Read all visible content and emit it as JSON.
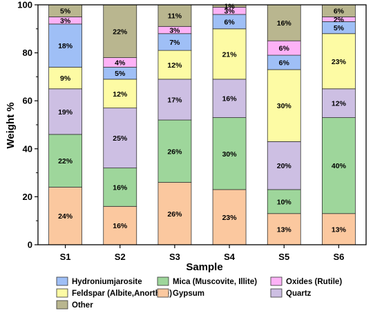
{
  "chart_data": {
    "type": "bar",
    "stacked": true,
    "title": "",
    "xlabel": "Sample",
    "ylabel": "Weight %",
    "ylim": [
      0,
      100
    ],
    "yticks": [
      0,
      20,
      40,
      60,
      80,
      100
    ],
    "grid": false,
    "legend_position": "bottom",
    "categories": [
      "S1",
      "S2",
      "S3",
      "S4",
      "S5",
      "S6"
    ],
    "series": [
      {
        "name": "Gypsum",
        "color": "#fbc89f",
        "values": [
          24,
          16,
          26,
          23,
          13,
          13
        ],
        "labels": [
          "24%",
          "16%",
          "26%",
          "23%",
          "13%",
          "13%"
        ]
      },
      {
        "name": "Mica (Muscovite, Illite)",
        "color": "#9ed69b",
        "values": [
          22,
          16,
          26,
          30,
          10,
          40
        ],
        "labels": [
          "22%",
          "16%",
          "26%",
          "30%",
          "10%",
          "40%"
        ]
      },
      {
        "name": "Quartz",
        "color": "#cdbfe3",
        "values": [
          19,
          25,
          17,
          16,
          20,
          12
        ],
        "labels": [
          "19%",
          "25%",
          "17%",
          "16%",
          "20%",
          "12%"
        ]
      },
      {
        "name": "Feldspar (Albite,Anorthite)",
        "color": "#fdfba4",
        "values": [
          9,
          12,
          12,
          21,
          30,
          23
        ],
        "labels": [
          "9%",
          "12%",
          "12%",
          "21%",
          "30%",
          "23%"
        ]
      },
      {
        "name": "Hydroniumjarosite",
        "color": "#9fbff6",
        "values": [
          18,
          5,
          7,
          6,
          6,
          5
        ],
        "labels": [
          "18%",
          "5%",
          "7%",
          "6%",
          "6%",
          "5%"
        ]
      },
      {
        "name": "Oxides (Rutile)",
        "color": "#fdb2f6",
        "values": [
          3,
          4,
          3,
          3,
          6,
          2
        ],
        "labels": [
          "3%",
          "4%",
          "3%",
          "3%",
          "6%",
          "2%"
        ]
      },
      {
        "name": "Other",
        "color": "#b9b68f",
        "values": [
          5,
          22,
          11,
          1,
          16,
          6
        ],
        "labels": [
          "5%",
          "22%",
          "11%",
          "1%",
          "16%",
          "6%"
        ]
      }
    ],
    "legend": [
      {
        "name": "Hydroniumjarosite",
        "color": "#9fbff6"
      },
      {
        "name": "Mica (Muscovite, Illite)",
        "color": "#9ed69b"
      },
      {
        "name": "Oxides (Rutile)",
        "color": "#fdb2f6"
      },
      {
        "name": "Feldspar (Albite,Anorthite)",
        "color": "#fdfba4"
      },
      {
        "name": "Gypsum",
        "color": "#fbc89f"
      },
      {
        "name": "Quartz",
        "color": "#cdbfe3"
      },
      {
        "name": "Other",
        "color": "#b9b68f"
      }
    ]
  }
}
